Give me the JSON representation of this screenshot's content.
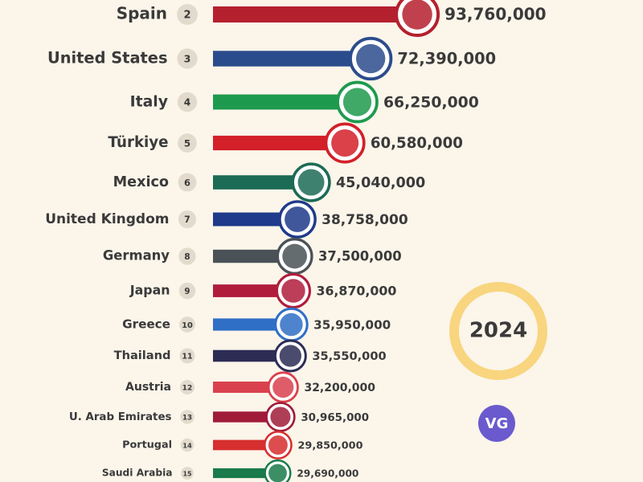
{
  "chart_data": {
    "type": "bar",
    "categories": [
      "Spain",
      "United States",
      "Italy",
      "Türkiye",
      "Mexico",
      "United Kingdom",
      "Germany",
      "Japan",
      "Greece",
      "Thailand",
      "Austria",
      "U. Arab Emirates",
      "Portugal",
      "Saudi Arabia"
    ],
    "ranks": [
      2,
      3,
      4,
      5,
      6,
      7,
      8,
      9,
      10,
      11,
      12,
      13,
      14,
      15
    ],
    "values": [
      93760000,
      72390000,
      66250000,
      60580000,
      45040000,
      38758000,
      37500000,
      36870000,
      35950000,
      35550000,
      32200000,
      30965000,
      29850000,
      29690000
    ],
    "value_labels": [
      "93,760,000",
      "72,390,000",
      "66,250,000",
      "60,580,000",
      "45,040,000",
      "38,758,000",
      "37,500,000",
      "36,870,000",
      "35,950,000",
      "35,550,000",
      "32,200,000",
      "30,965,000",
      "29,850,000",
      "29,690,000"
    ],
    "colors": [
      "#b5202e",
      "#2b4c8c",
      "#1e9a4e",
      "#d32029",
      "#1c6b55",
      "#1f3a8a",
      "#4a5257",
      "#b01c3c",
      "#2f6fc6",
      "#2c2c55",
      "#d9414e",
      "#a01c38",
      "#d72e2e",
      "#1a7a4a"
    ],
    "xlim": [
      0,
      100000000
    ],
    "year": "2024",
    "logo": "VG"
  }
}
